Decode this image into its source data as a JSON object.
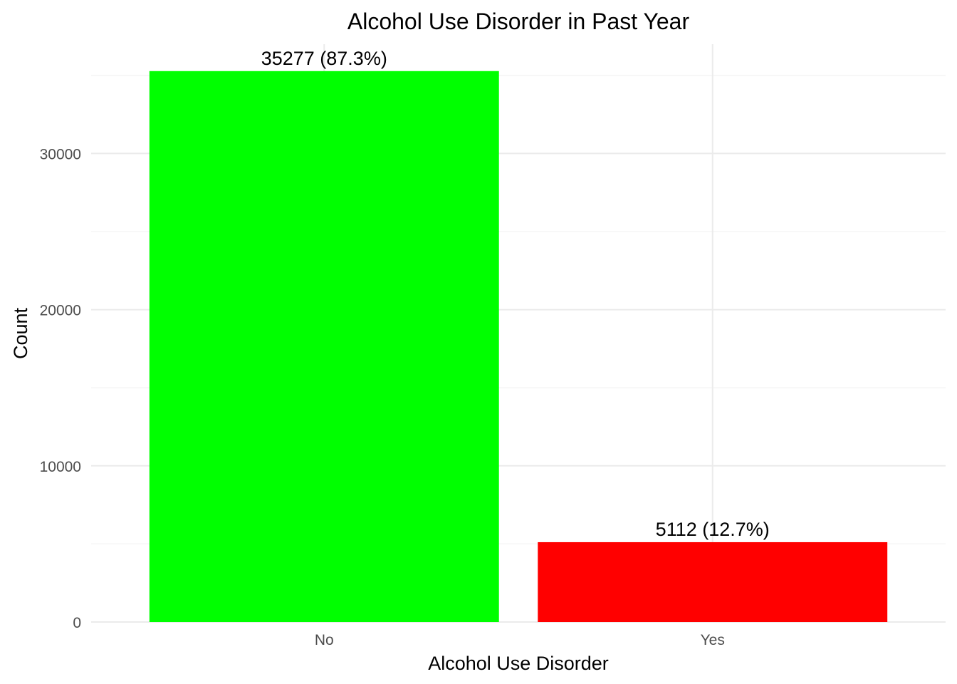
{
  "chart_data": {
    "type": "bar",
    "title": "Alcohol Use Disorder in Past Year",
    "xlabel": "Alcohol Use Disorder",
    "ylabel": "Count",
    "categories": [
      "No",
      "Yes"
    ],
    "values": [
      35277,
      5112
    ],
    "data_labels": [
      "35277 (87.3%)",
      "5112 (12.7%)"
    ],
    "colors": [
      "#00ff00",
      "#ff0000"
    ],
    "ylim": [
      0,
      37000
    ],
    "y_ticks": [
      0,
      10000,
      20000,
      30000
    ],
    "y_tick_labels": [
      "0",
      "10000",
      "20000",
      "30000"
    ],
    "grid": true,
    "legend": "none"
  }
}
